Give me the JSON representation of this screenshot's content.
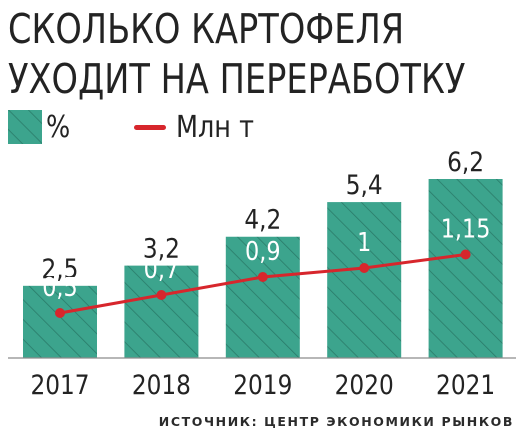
{
  "chart_data": {
    "type": "bar",
    "title": [
      "СКОЛЬКО КАРТОФЕЛЯ",
      "УХОДИТ НА ПЕРЕРАБОТКУ"
    ],
    "categories": [
      "2017",
      "2018",
      "2019",
      "2020",
      "2021"
    ],
    "series": [
      {
        "name": "%",
        "type": "bar",
        "values": [
          2.5,
          3.2,
          4.2,
          5.4,
          6.2
        ],
        "labels": [
          "2,5",
          "3,2",
          "4,2",
          "5,4",
          "6,2"
        ],
        "color": "#3ca48d",
        "hatch_color": "#2a7b69"
      },
      {
        "name": "Млн т",
        "type": "line",
        "values": [
          0.5,
          0.7,
          0.9,
          1,
          1.15
        ],
        "labels": [
          "0,5",
          "0,7",
          "0,9",
          "1",
          "1,15"
        ],
        "color": "#d7262c"
      }
    ],
    "legend": "top-left",
    "grid": false,
    "source": "ИСТОЧНИК: ЦЕНТР ЭКОНОМИКИ РЫНКОВ"
  }
}
